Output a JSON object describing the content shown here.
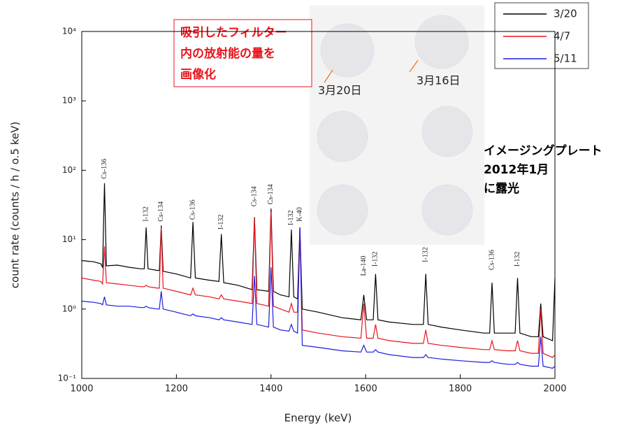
{
  "chart_data": {
    "type": "line",
    "x_label": "Energy (keV)",
    "y_label": "count rate (counts / h / o.5 keV)",
    "xlim": [
      1000,
      2000
    ],
    "xticks": [
      1000,
      1200,
      1400,
      1600,
      1800,
      2000
    ],
    "ylim": [
      0.1,
      10000
    ],
    "log_y": true,
    "yticks": [
      {
        "value": 0.1,
        "label": "10⁻¹"
      },
      {
        "value": 1,
        "label": "10⁰"
      },
      {
        "value": 10,
        "label": "10¹"
      },
      {
        "value": 100,
        "label": "10²"
      },
      {
        "value": 1000,
        "label": "10³"
      },
      {
        "value": 10000,
        "label": "10⁴"
      }
    ],
    "legend": "upper right",
    "x": [
      1000,
      1025,
      1040,
      1044,
      1048,
      1052,
      1075,
      1100,
      1125,
      1132,
      1136,
      1140,
      1160,
      1164,
      1168,
      1172,
      1200,
      1230,
      1235,
      1240,
      1270,
      1290,
      1295,
      1300,
      1330,
      1360,
      1365,
      1370,
      1395,
      1400,
      1405,
      1420,
      1438,
      1443,
      1448,
      1456,
      1461,
      1466,
      1500,
      1550,
      1590,
      1596,
      1602,
      1616,
      1621,
      1626,
      1650,
      1700,
      1722,
      1727,
      1732,
      1760,
      1800,
      1850,
      1862,
      1867,
      1872,
      1900,
      1916,
      1921,
      1926,
      1950,
      1965,
      1970,
      1975,
      1995,
      2000
    ],
    "series": [
      {
        "name": "3/20",
        "color": "#000000",
        "values": [
          5,
          4.8,
          4.5,
          4,
          65,
          4.2,
          4.3,
          4,
          3.8,
          3.8,
          15,
          3.8,
          3.6,
          3.6,
          16,
          3.5,
          3.2,
          2.8,
          18,
          2.8,
          2.6,
          2.5,
          12,
          2.4,
          2.2,
          1.9,
          21,
          1.9,
          1.8,
          28,
          1.8,
          1.6,
          1.5,
          14,
          1.5,
          1.4,
          15,
          1.0,
          0.9,
          0.75,
          0.7,
          1.6,
          0.7,
          0.7,
          3.2,
          0.7,
          0.65,
          0.6,
          0.6,
          3.2,
          0.6,
          0.55,
          0.5,
          0.45,
          0.45,
          2.4,
          0.45,
          0.45,
          0.45,
          2.8,
          0.45,
          0.4,
          0.4,
          1.2,
          0.4,
          0.35,
          2.8
        ]
      },
      {
        "name": "4/7",
        "color": "#e8141c",
        "values": [
          2.8,
          2.6,
          2.5,
          2.3,
          8,
          2.4,
          2.3,
          2.2,
          2.1,
          2.1,
          2.2,
          2.1,
          2.0,
          2.0,
          15,
          2.0,
          1.8,
          1.6,
          2.0,
          1.6,
          1.5,
          1.4,
          1.6,
          1.4,
          1.3,
          1.2,
          20,
          1.2,
          1.1,
          25,
          1.1,
          1.0,
          0.9,
          1.2,
          0.9,
          0.9,
          15,
          0.5,
          0.45,
          0.4,
          0.38,
          1.2,
          0.38,
          0.38,
          0.6,
          0.38,
          0.35,
          0.32,
          0.32,
          0.5,
          0.32,
          0.3,
          0.28,
          0.26,
          0.26,
          0.35,
          0.26,
          0.25,
          0.25,
          0.35,
          0.25,
          0.23,
          0.23,
          1.0,
          0.23,
          0.2,
          0.22
        ]
      },
      {
        "name": "5/11",
        "color": "#1c1ce0",
        "values": [
          1.3,
          1.25,
          1.2,
          1.15,
          1.5,
          1.15,
          1.1,
          1.1,
          1.05,
          1.05,
          1.1,
          1.05,
          1.0,
          1.0,
          1.8,
          1.0,
          0.9,
          0.8,
          0.85,
          0.8,
          0.75,
          0.7,
          0.75,
          0.7,
          0.65,
          0.6,
          3,
          0.6,
          0.55,
          4,
          0.55,
          0.5,
          0.48,
          0.6,
          0.48,
          0.45,
          15,
          0.3,
          0.28,
          0.25,
          0.24,
          0.3,
          0.24,
          0.24,
          0.26,
          0.24,
          0.22,
          0.2,
          0.2,
          0.22,
          0.2,
          0.19,
          0.18,
          0.17,
          0.17,
          0.18,
          0.17,
          0.16,
          0.16,
          0.17,
          0.16,
          0.15,
          0.15,
          0.4,
          0.15,
          0.14,
          0.15
        ]
      }
    ],
    "annotations": [
      {
        "text": "Cs-136",
        "x": 1048,
        "y": 70
      },
      {
        "text": "I-132",
        "x": 1136,
        "y": 17
      },
      {
        "text": "Cs-134",
        "x": 1168,
        "y": 17
      },
      {
        "text": "Cs-136",
        "x": 1235,
        "y": 18
      },
      {
        "text": "I-132",
        "x": 1295,
        "y": 13
      },
      {
        "text": "Cs-134",
        "x": 1365,
        "y": 28
      },
      {
        "text": "Cs-134",
        "x": 1400,
        "y": 30
      },
      {
        "text": "I-132",
        "x": 1443,
        "y": 15
      },
      {
        "text": "K-40",
        "x": 1461,
        "y": 17
      },
      {
        "text": "La-140",
        "x": 1596,
        "y": 2.8
      },
      {
        "text": "I-132",
        "x": 1621,
        "y": 3.8
      },
      {
        "text": "I-132",
        "x": 1727,
        "y": 4.4
      },
      {
        "text": "Cs-136",
        "x": 1867,
        "y": 3.4
      },
      {
        "text": "I-132",
        "x": 1921,
        "y": 3.8
      }
    ],
    "inset": {
      "labels": [
        "3月20日",
        "3月16日"
      ],
      "callout": [
        "吸引したフィルター",
        "内の放射能の量を",
        "画像化"
      ],
      "note": [
        "イメージングプレート",
        "2012年1月",
        "に露光"
      ]
    }
  }
}
